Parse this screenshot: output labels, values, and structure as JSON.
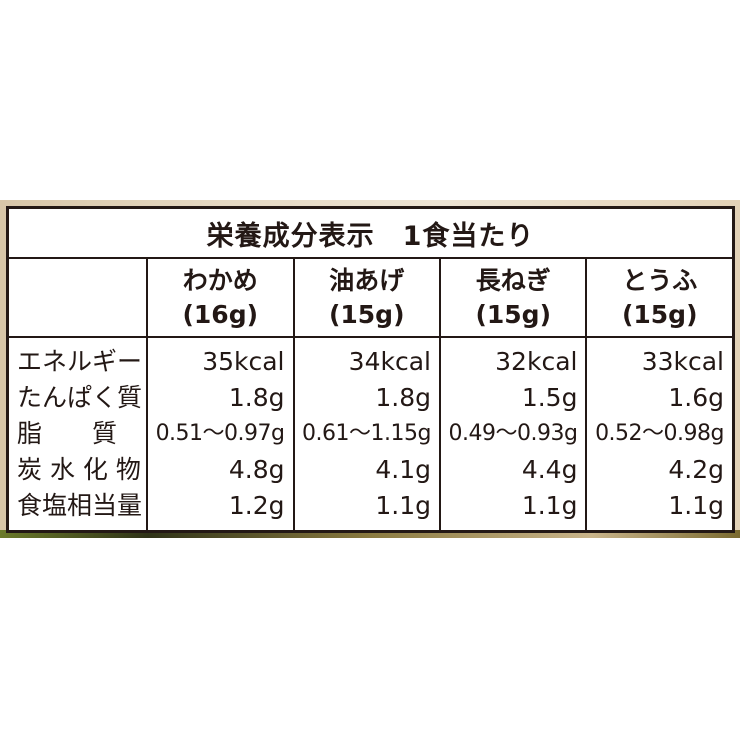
{
  "title": {
    "main": "栄養成分表示",
    "sub": "1食当たり"
  },
  "columns": [
    {
      "name": "わかめ",
      "weight": "(16g)"
    },
    {
      "name": "油あげ",
      "weight": "(15g)"
    },
    {
      "name": "長ねぎ",
      "weight": "(15g)"
    },
    {
      "name": "とうふ",
      "weight": "(15g)"
    }
  ],
  "rows": [
    {
      "label": "エネルギー",
      "values": [
        "35kcal",
        "34kcal",
        "32kcal",
        "33kcal"
      ]
    },
    {
      "label": "たんぱく質",
      "values": [
        "1.8g",
        "1.8g",
        "1.5g",
        "1.6g"
      ]
    },
    {
      "label": "脂　　質",
      "values": [
        "0.51〜0.97g",
        "0.61〜1.15g",
        "0.49〜0.93g",
        "0.52〜0.98g"
      ]
    },
    {
      "label": "炭 水 化 物",
      "values": [
        "4.8g",
        "4.1g",
        "4.4g",
        "4.2g"
      ]
    },
    {
      "label": "食塩相当量",
      "values": [
        "1.2g",
        "1.1g",
        "1.1g",
        "1.1g"
      ]
    }
  ]
}
